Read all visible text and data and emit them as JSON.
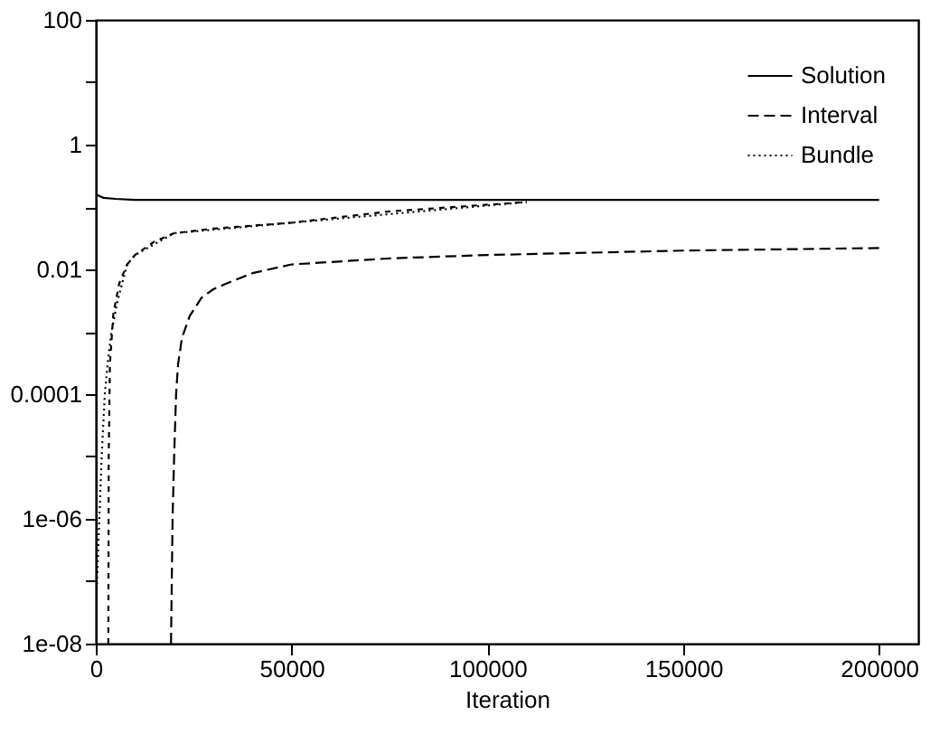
{
  "chart_data": {
    "type": "line",
    "xlabel": "Iteration",
    "xlim": [
      0,
      210000
    ],
    "xticks": [
      0,
      50000,
      100000,
      150000,
      200000
    ],
    "ylim": [
      1e-08,
      100
    ],
    "log": "y",
    "yticks": [
      {
        "value": 1e-08,
        "label": "1e-08"
      },
      {
        "value": 1e-07,
        "label": null
      },
      {
        "value": 1e-06,
        "label": "1e-06"
      },
      {
        "value": 1e-05,
        "label": null
      },
      {
        "value": 0.0001,
        "label": "0.0001"
      },
      {
        "value": 0.001,
        "label": null
      },
      0.01,
      {
        "value": 0.1,
        "label": null
      },
      1,
      {
        "value": 10,
        "label": null
      },
      100
    ],
    "legend": "top right",
    "grid": false,
    "series": [
      {
        "name": "Solution",
        "color": "#000000",
        "line_style": "solid",
        "x": [
          0,
          2000,
          5000,
          10000,
          20000,
          50000,
          100000,
          150000,
          200000
        ],
        "values": [
          0.16,
          0.14,
          0.135,
          0.13,
          0.13,
          0.13,
          0.13,
          0.13,
          0.13
        ]
      },
      {
        "name": "Interval",
        "color": "#000000",
        "line_style": "dashed",
        "x": [
          19200,
          19600,
          20000,
          20500,
          21000,
          22000,
          24000,
          27000,
          30000,
          33000,
          40000,
          50000,
          75000,
          100000,
          150000,
          200000
        ],
        "values": [
          1e-08,
          1e-06,
          1e-05,
          0.0001,
          0.0003,
          0.0008,
          0.0018,
          0.0035,
          0.0048,
          0.0058,
          0.0087,
          0.012,
          0.015,
          0.017,
          0.02,
          0.022
        ]
      },
      {
        "color": "#000000",
        "line_style": "dashed",
        "x": [
          3200,
          3300,
          3600,
          4500,
          6000,
          8000,
          10000,
          15000,
          20000,
          30000,
          50000,
          75000,
          110000
        ],
        "values": [
          1e-08,
          1e-05,
          0.0003,
          0.002,
          0.006,
          0.012,
          0.017,
          0.028,
          0.038,
          0.045,
          0.056,
          0.085,
          0.12
        ]
      },
      {
        "name": "Bundle",
        "color": "#000000",
        "line_style": "dotted",
        "x": [
          0,
          300,
          900,
          1500,
          2300,
          3000,
          4000,
          5500,
          7000,
          8000,
          10000,
          20000,
          50000,
          110000
        ],
        "values": [
          1e-08,
          1e-07,
          1e-06,
          1e-05,
          0.0001,
          0.0003,
          0.001,
          0.003,
          0.007,
          0.012,
          0.017,
          0.038,
          0.056,
          0.12
        ]
      }
    ]
  }
}
